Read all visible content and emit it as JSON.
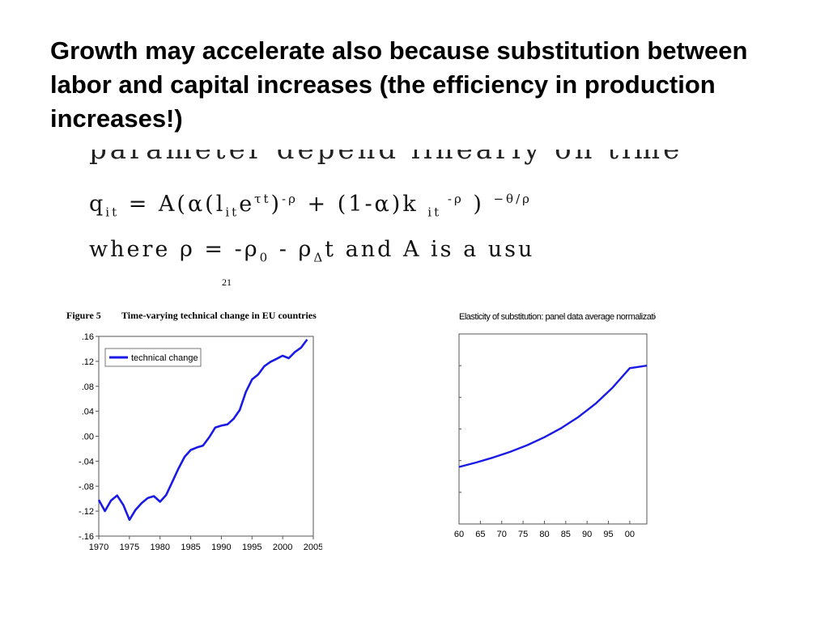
{
  "slide": {
    "title": "Growth may accelerate also because substitution between labor and capital increases (the efficiency in production increases!)"
  },
  "equation": {
    "cut_line": "parameter depend linearly on time",
    "eq1": {
      "lhs": "q",
      "lhs_sub": "it",
      "eq": " = A(α(l",
      "l_sub": "it",
      "e": "e",
      "e_sup": "τt",
      "close": ")",
      "close_sup": "-ρ",
      "plus": "  +  (1-α)k ",
      "k_sub": "it",
      "k_sup": " -ρ",
      "end": " ) ",
      "end_sup": "−θ/ρ"
    },
    "eq2": {
      "text1": "where ρ = -ρ",
      "sub1": "0",
      "text2": " - ρ",
      "sub2": "Δ",
      "text3": "t and A is a usu"
    },
    "page_number": "21"
  },
  "chart_data": [
    {
      "type": "line",
      "figure_label": "Figure 5",
      "title": "Time-varying technical change in EU countries",
      "xlim": [
        1970,
        2005
      ],
      "ylim": [
        -0.16,
        0.16
      ],
      "x_ticks": [
        1970,
        1975,
        1980,
        1985,
        1990,
        1995,
        2000,
        2005
      ],
      "y_ticks": [
        {
          "v": 0.16,
          "label": ".16"
        },
        {
          "v": 0.12,
          "label": ".12"
        },
        {
          "v": 0.08,
          "label": ".08"
        },
        {
          "v": 0.04,
          "label": ".04"
        },
        {
          "v": 0.0,
          "label": ".00"
        },
        {
          "v": -0.04,
          "label": "-.04"
        },
        {
          "v": -0.08,
          "label": "-.08"
        },
        {
          "v": -0.12,
          "label": "-.12"
        },
        {
          "v": -0.16,
          "label": "-.16"
        }
      ],
      "legend_position": "top-left",
      "series": [
        {
          "name": "technical change",
          "color": "#1a1ae6",
          "x": [
            1970,
            1971,
            1972,
            1973,
            1974,
            1975,
            1976,
            1977,
            1978,
            1979,
            1980,
            1981,
            1982,
            1983,
            1984,
            1985,
            1986,
            1987,
            1988,
            1989,
            1990,
            1991,
            1992,
            1993,
            1994,
            1995,
            1996,
            1997,
            1998,
            1999,
            2000,
            2001,
            2002,
            2003,
            2004
          ],
          "y": [
            -0.102,
            -0.12,
            -0.103,
            -0.095,
            -0.11,
            -0.134,
            -0.118,
            -0.107,
            -0.099,
            -0.096,
            -0.105,
            -0.094,
            -0.073,
            -0.052,
            -0.033,
            -0.022,
            -0.018,
            -0.015,
            -0.002,
            0.014,
            0.017,
            0.019,
            0.028,
            0.042,
            0.071,
            0.091,
            0.099,
            0.112,
            0.119,
            0.124,
            0.129,
            0.125,
            0.135,
            0.142,
            0.155
          ]
        }
      ]
    },
    {
      "type": "line",
      "title": "Elasticity of substitution: panel data average normalization",
      "xlim": [
        1960,
        2004
      ],
      "x_ticks": [
        {
          "v": 1960,
          "label": "60"
        },
        {
          "v": 1965,
          "label": "65"
        },
        {
          "v": 1970,
          "label": "70"
        },
        {
          "v": 1975,
          "label": "75"
        },
        {
          "v": 1980,
          "label": "80"
        },
        {
          "v": 1985,
          "label": "85"
        },
        {
          "v": 1990,
          "label": "90"
        },
        {
          "v": 1995,
          "label": "95"
        },
        {
          "v": 2000,
          "label": "00"
        }
      ],
      "ylim": [
        0,
        6
      ],
      "y_ticks_unlabeled": [
        0,
        1,
        2,
        3,
        4,
        5,
        6
      ],
      "series": [
        {
          "color": "#1a1ae6",
          "x": [
            1960,
            1964,
            1968,
            1972,
            1976,
            1980,
            1984,
            1988,
            1992,
            1996,
            2000,
            2004
          ],
          "y": [
            1.8,
            1.94,
            2.1,
            2.28,
            2.49,
            2.74,
            3.03,
            3.38,
            3.8,
            4.31,
            4.92,
            5.0
          ]
        }
      ]
    }
  ]
}
